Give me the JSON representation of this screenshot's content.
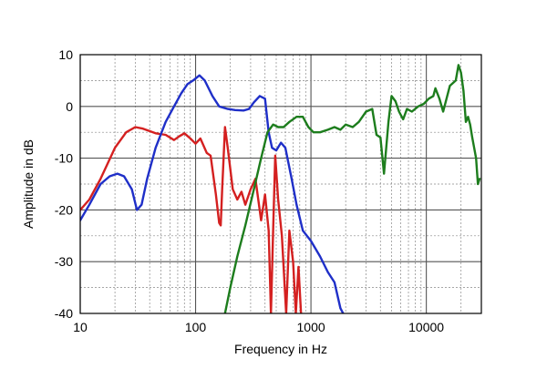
{
  "chart_data": {
    "type": "line",
    "title": "",
    "xlabel": "Frequency in Hz",
    "ylabel": "Amplitude in dB",
    "x_scale": "log",
    "xlim": [
      10,
      30000
    ],
    "ylim": [
      -40,
      10
    ],
    "grid": true,
    "x_ticks": [
      10,
      100,
      1000,
      10000
    ],
    "x_tick_labels": [
      "10",
      "100",
      "1000",
      "10000"
    ],
    "y_ticks": [
      10,
      0,
      -10,
      -20,
      -30,
      -40
    ],
    "y_tick_labels": [
      "10",
      "0",
      "-10",
      "-20",
      "-30",
      "-40"
    ],
    "series": [
      {
        "color": "#d42020",
        "points": [
          [
            10,
            -20
          ],
          [
            12,
            -18
          ],
          [
            15,
            -14
          ],
          [
            20,
            -8
          ],
          [
            25,
            -5
          ],
          [
            30,
            -4
          ],
          [
            35,
            -4.3
          ],
          [
            45,
            -5.2
          ],
          [
            55,
            -5.5
          ],
          [
            65,
            -6.5
          ],
          [
            72,
            -5.8
          ],
          [
            80,
            -5.2
          ],
          [
            90,
            -6.2
          ],
          [
            100,
            -7.2
          ],
          [
            110,
            -6.2
          ],
          [
            125,
            -9
          ],
          [
            135,
            -9.5
          ],
          [
            150,
            -17
          ],
          [
            160,
            -22.5
          ],
          [
            165,
            -23
          ],
          [
            170,
            -16
          ],
          [
            180,
            -4
          ],
          [
            190,
            -8
          ],
          [
            210,
            -16
          ],
          [
            230,
            -18
          ],
          [
            250,
            -16.5
          ],
          [
            270,
            -19
          ],
          [
            300,
            -16
          ],
          [
            330,
            -14
          ],
          [
            370,
            -22
          ],
          [
            400,
            -17
          ],
          [
            430,
            -24
          ],
          [
            450,
            -40
          ],
          [
            470,
            -24
          ],
          [
            490,
            -9.5
          ],
          [
            520,
            -18
          ],
          [
            560,
            -25
          ],
          [
            610,
            -40
          ],
          [
            650,
            -24
          ],
          [
            700,
            -30
          ],
          [
            740,
            -40
          ],
          [
            780,
            -31
          ],
          [
            820,
            -40
          ]
        ]
      },
      {
        "color": "#1f2fc8",
        "points": [
          [
            10,
            -22
          ],
          [
            12,
            -19
          ],
          [
            15,
            -15
          ],
          [
            18,
            -13.5
          ],
          [
            21,
            -13
          ],
          [
            24,
            -13.5
          ],
          [
            28,
            -16
          ],
          [
            31,
            -20
          ],
          [
            34,
            -19
          ],
          [
            38,
            -14
          ],
          [
            45,
            -8
          ],
          [
            55,
            -3
          ],
          [
            65,
            0
          ],
          [
            75,
            2.5
          ],
          [
            85,
            4.3
          ],
          [
            95,
            5
          ],
          [
            108,
            6
          ],
          [
            120,
            5
          ],
          [
            140,
            2
          ],
          [
            160,
            0
          ],
          [
            190,
            -0.5
          ],
          [
            220,
            -0.7
          ],
          [
            260,
            -0.8
          ],
          [
            290,
            -0.5
          ],
          [
            320,
            0.8
          ],
          [
            360,
            2
          ],
          [
            400,
            1.5
          ],
          [
            430,
            -5
          ],
          [
            460,
            -8
          ],
          [
            500,
            -8.5
          ],
          [
            550,
            -7
          ],
          [
            600,
            -8
          ],
          [
            680,
            -14
          ],
          [
            750,
            -19
          ],
          [
            850,
            -24
          ],
          [
            1000,
            -26
          ],
          [
            1200,
            -29
          ],
          [
            1400,
            -32
          ],
          [
            1600,
            -34
          ],
          [
            1800,
            -39
          ],
          [
            1900,
            -40
          ]
        ]
      },
      {
        "color": "#1d7d1d",
        "points": [
          [
            180,
            -40
          ],
          [
            200,
            -35
          ],
          [
            230,
            -29
          ],
          [
            270,
            -23
          ],
          [
            320,
            -16
          ],
          [
            370,
            -10
          ],
          [
            420,
            -5
          ],
          [
            470,
            -3.5
          ],
          [
            520,
            -4
          ],
          [
            580,
            -4
          ],
          [
            650,
            -3
          ],
          [
            750,
            -2
          ],
          [
            850,
            -2
          ],
          [
            950,
            -4
          ],
          [
            1050,
            -5
          ],
          [
            1200,
            -5
          ],
          [
            1400,
            -4.5
          ],
          [
            1600,
            -4
          ],
          [
            1800,
            -4.5
          ],
          [
            2000,
            -3.5
          ],
          [
            2300,
            -4
          ],
          [
            2600,
            -3
          ],
          [
            3000,
            -1
          ],
          [
            3400,
            -0.5
          ],
          [
            3700,
            -5.5
          ],
          [
            4000,
            -6
          ],
          [
            4300,
            -13
          ],
          [
            4700,
            -3
          ],
          [
            5000,
            2
          ],
          [
            5400,
            1
          ],
          [
            5800,
            -1
          ],
          [
            6300,
            -2.5
          ],
          [
            6800,
            -0.5
          ],
          [
            7500,
            -1
          ],
          [
            8500,
            0
          ],
          [
            9500,
            0.5
          ],
          [
            10500,
            1.5
          ],
          [
            11500,
            2
          ],
          [
            12000,
            3.5
          ],
          [
            13000,
            1.5
          ],
          [
            14000,
            -1
          ],
          [
            16000,
            4
          ],
          [
            18000,
            5
          ],
          [
            19000,
            8
          ],
          [
            20000,
            6.5
          ],
          [
            21000,
            3
          ],
          [
            22000,
            -3
          ],
          [
            23000,
            -2
          ],
          [
            24000,
            -3.5
          ],
          [
            25000,
            -6
          ],
          [
            26000,
            -8
          ],
          [
            27000,
            -10
          ],
          [
            28000,
            -15
          ],
          [
            29000,
            -14
          ]
        ]
      }
    ]
  }
}
